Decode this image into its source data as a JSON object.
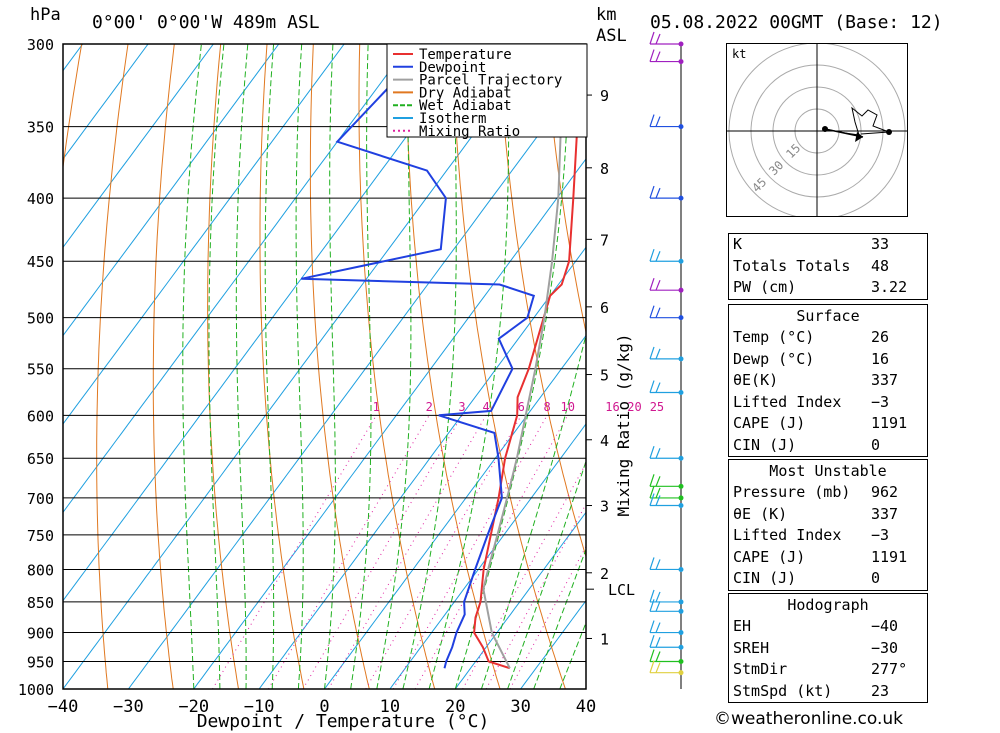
{
  "header": {
    "pressure_unit": "hPa",
    "location": "0°00' 0°00'W 489m ASL",
    "km_label": "km",
    "asl_label": "ASL",
    "datetime": "05.08.2022 00GMT (Base: 12)"
  },
  "chart_data": {
    "type": "line",
    "xlabel": "Dewpoint / Temperature (°C)",
    "ylabel": "hPa",
    "secondary_ylabel": "Mixing Ratio (g/kg)",
    "xlim": [
      -40,
      40
    ],
    "ylim": [
      1000,
      300
    ],
    "pressure_ticks": [
      300,
      350,
      400,
      450,
      500,
      550,
      600,
      650,
      700,
      750,
      800,
      850,
      900,
      950,
      1000
    ],
    "temperature_ticks": [
      -40,
      -30,
      -20,
      -10,
      0,
      10,
      20,
      30,
      40
    ],
    "km_ticks": [
      {
        "label": "1",
        "p": 910
      },
      {
        "label": "2",
        "p": 805
      },
      {
        "label": "3",
        "p": 710
      },
      {
        "label": "4",
        "p": 628
      },
      {
        "label": "5",
        "p": 556
      },
      {
        "label": "6",
        "p": 490
      },
      {
        "label": "7",
        "p": 432
      },
      {
        "label": "8",
        "p": 378
      },
      {
        "label": "9",
        "p": 330
      }
    ],
    "lcl": {
      "label": "LCL",
      "p": 830
    },
    "mixing_ratio_labels": [
      "1",
      "2",
      "3",
      "4",
      "6",
      "8",
      "10",
      "16",
      "20",
      "25"
    ],
    "legend": [
      {
        "name": "Temperature",
        "color": "#e83030"
      },
      {
        "name": "Dewpoint",
        "color": "#2040e0"
      },
      {
        "name": "Parcel Trajectory",
        "color": "#a0a0a0"
      },
      {
        "name": "Dry Adiabat",
        "color": "#e07820"
      },
      {
        "name": "Wet Adiabat",
        "color": "#20b020"
      },
      {
        "name": "Isotherm",
        "color": "#20a0e0"
      },
      {
        "name": "Mixing Ratio",
        "color": "#e020a0"
      }
    ],
    "series": [
      {
        "name": "Temperature",
        "color": "#e83030",
        "points": [
          [
            962,
            26
          ],
          [
            950,
            22
          ],
          [
            925,
            19.5
          ],
          [
            900,
            16.5
          ],
          [
            875,
            15
          ],
          [
            850,
            14
          ],
          [
            800,
            10.8
          ],
          [
            750,
            8
          ],
          [
            700,
            5
          ],
          [
            650,
            1.5
          ],
          [
            600,
            -1.5
          ],
          [
            580,
            -3.5
          ],
          [
            550,
            -5
          ],
          [
            500,
            -8.5
          ],
          [
            480,
            -10
          ],
          [
            470,
            -9.5
          ],
          [
            450,
            -11
          ],
          [
            400,
            -17.5
          ],
          [
            350,
            -25
          ],
          [
            300,
            -33
          ]
        ]
      },
      {
        "name": "Dewpoint",
        "color": "#2040e0",
        "points": [
          [
            962,
            16
          ],
          [
            950,
            15.5
          ],
          [
            925,
            14.8
          ],
          [
            900,
            13.8
          ],
          [
            870,
            13
          ],
          [
            850,
            11.5
          ],
          [
            800,
            9.5
          ],
          [
            750,
            7.5
          ],
          [
            700,
            5.5
          ],
          [
            650,
            0.5
          ],
          [
            620,
            -3
          ],
          [
            600,
            -13.5
          ],
          [
            595,
            -6
          ],
          [
            550,
            -7.5
          ],
          [
            520,
            -13
          ],
          [
            500,
            -11
          ],
          [
            480,
            -12.5
          ],
          [
            470,
            -19
          ],
          [
            465,
            -50
          ],
          [
            440,
            -32
          ],
          [
            400,
            -37
          ],
          [
            380,
            -43
          ],
          [
            360,
            -60
          ],
          [
            320,
            -58
          ],
          [
            300,
            -55
          ]
        ]
      },
      {
        "name": "Parcel Trajectory",
        "color": "#a0a0a0",
        "points": [
          [
            962,
            26
          ],
          [
            900,
            19.2
          ],
          [
            830,
            13
          ],
          [
            800,
            11.5
          ],
          [
            750,
            9
          ],
          [
            700,
            6.3
          ],
          [
            650,
            3.3
          ],
          [
            600,
            -0.2
          ],
          [
            550,
            -4
          ],
          [
            500,
            -8.4
          ],
          [
            450,
            -13.6
          ],
          [
            400,
            -19.8
          ],
          [
            350,
            -27.5
          ],
          [
            300,
            -37
          ]
        ]
      }
    ],
    "wind_barbs": [
      {
        "p": 300,
        "color": "#a020c0"
      },
      {
        "p": 310,
        "color": "#a020c0"
      },
      {
        "p": 350,
        "color": "#2050e0"
      },
      {
        "p": 400,
        "color": "#2050e0"
      },
      {
        "p": 450,
        "color": "#20a0e0"
      },
      {
        "p": 475,
        "color": "#a020c0"
      },
      {
        "p": 500,
        "color": "#2050e0"
      },
      {
        "p": 540,
        "color": "#20a0e0"
      },
      {
        "p": 575,
        "color": "#20a0e0"
      },
      {
        "p": 650,
        "color": "#20a0e0"
      },
      {
        "p": 685,
        "color": "#20c020"
      },
      {
        "p": 700,
        "color": "#20c020"
      },
      {
        "p": 710,
        "color": "#20a0e0"
      },
      {
        "p": 800,
        "color": "#20a0e0"
      },
      {
        "p": 850,
        "color": "#20a0e0"
      },
      {
        "p": 865,
        "color": "#20a0e0"
      },
      {
        "p": 900,
        "color": "#20a0e0"
      },
      {
        "p": 925,
        "color": "#20a0e0"
      },
      {
        "p": 950,
        "color": "#20c020"
      },
      {
        "p": 970,
        "color": "#e0d040"
      }
    ]
  },
  "hodograph": {
    "unit": "kt",
    "rings": [
      "15",
      "30",
      "45"
    ]
  },
  "indices": {
    "rows": [
      {
        "label": "K",
        "value": "33"
      },
      {
        "label": "Totals Totals",
        "value": "48"
      },
      {
        "label": "PW (cm)",
        "value": "3.22"
      }
    ]
  },
  "surface": {
    "title": "Surface",
    "rows": [
      {
        "label": "Temp (°C)",
        "value": "26"
      },
      {
        "label": "Dewp (°C)",
        "value": "16"
      },
      {
        "label": "θE(K)",
        "value": "337"
      },
      {
        "label": "Lifted Index",
        "value": "-3"
      },
      {
        "label": "CAPE (J)",
        "value": "1191"
      },
      {
        "label": "CIN (J)",
        "value": "0"
      }
    ]
  },
  "most_unstable": {
    "title": "Most Unstable",
    "rows": [
      {
        "label": "Pressure (mb)",
        "value": "962"
      },
      {
        "label": "θE (K)",
        "value": "337"
      },
      {
        "label": "Lifted Index",
        "value": "-3"
      },
      {
        "label": "CAPE (J)",
        "value": "1191"
      },
      {
        "label": "CIN (J)",
        "value": "0"
      }
    ]
  },
  "hodograph_table": {
    "title": "Hodograph",
    "rows": [
      {
        "label": "EH",
        "value": "-40"
      },
      {
        "label": "SREH",
        "value": "-30"
      },
      {
        "label": "StmDir",
        "value": "277°"
      },
      {
        "label": "StmSpd (kt)",
        "value": "23"
      }
    ]
  },
  "copyright": "©weatheronline.co.uk"
}
